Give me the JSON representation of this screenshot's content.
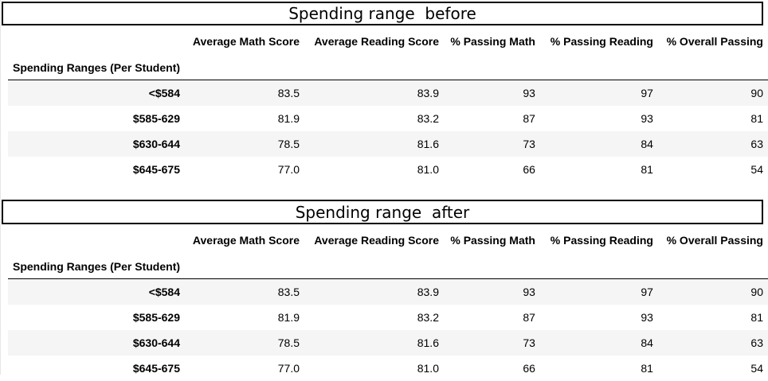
{
  "sections": {
    "before": {
      "title": "Spending range  before",
      "index_label": "Spending Ranges (Per Student)",
      "columns": [
        "Average Math Score",
        "Average Reading Score",
        "% Passing Math",
        "% Passing Reading",
        "% Overall Passing"
      ],
      "rows": [
        {
          "label": "<$584",
          "values": [
            "83.5",
            "83.9",
            "93",
            "97",
            "90"
          ]
        },
        {
          "label": "$585-629",
          "values": [
            "81.9",
            "83.2",
            "87",
            "93",
            "81"
          ]
        },
        {
          "label": "$630-644",
          "values": [
            "78.5",
            "81.6",
            "73",
            "84",
            "63"
          ]
        },
        {
          "label": "$645-675",
          "values": [
            "77.0",
            "81.0",
            "66",
            "81",
            "54"
          ]
        }
      ]
    },
    "after": {
      "title": "Spending range  after",
      "index_label": "Spending Ranges (Per Student)",
      "columns": [
        "Average Math Score",
        "Average Reading Score",
        "% Passing Math",
        "% Passing Reading",
        "% Overall Passing"
      ],
      "rows": [
        {
          "label": "<$584",
          "values": [
            "83.5",
            "83.9",
            "93",
            "97",
            "90"
          ]
        },
        {
          "label": "$585-629",
          "values": [
            "81.9",
            "83.2",
            "87",
            "93",
            "81"
          ]
        },
        {
          "label": "$630-644",
          "values": [
            "78.5",
            "81.6",
            "73",
            "84",
            "63"
          ]
        },
        {
          "label": "$645-675",
          "values": [
            "77.0",
            "81.0",
            "66",
            "81",
            "54"
          ]
        }
      ]
    }
  }
}
